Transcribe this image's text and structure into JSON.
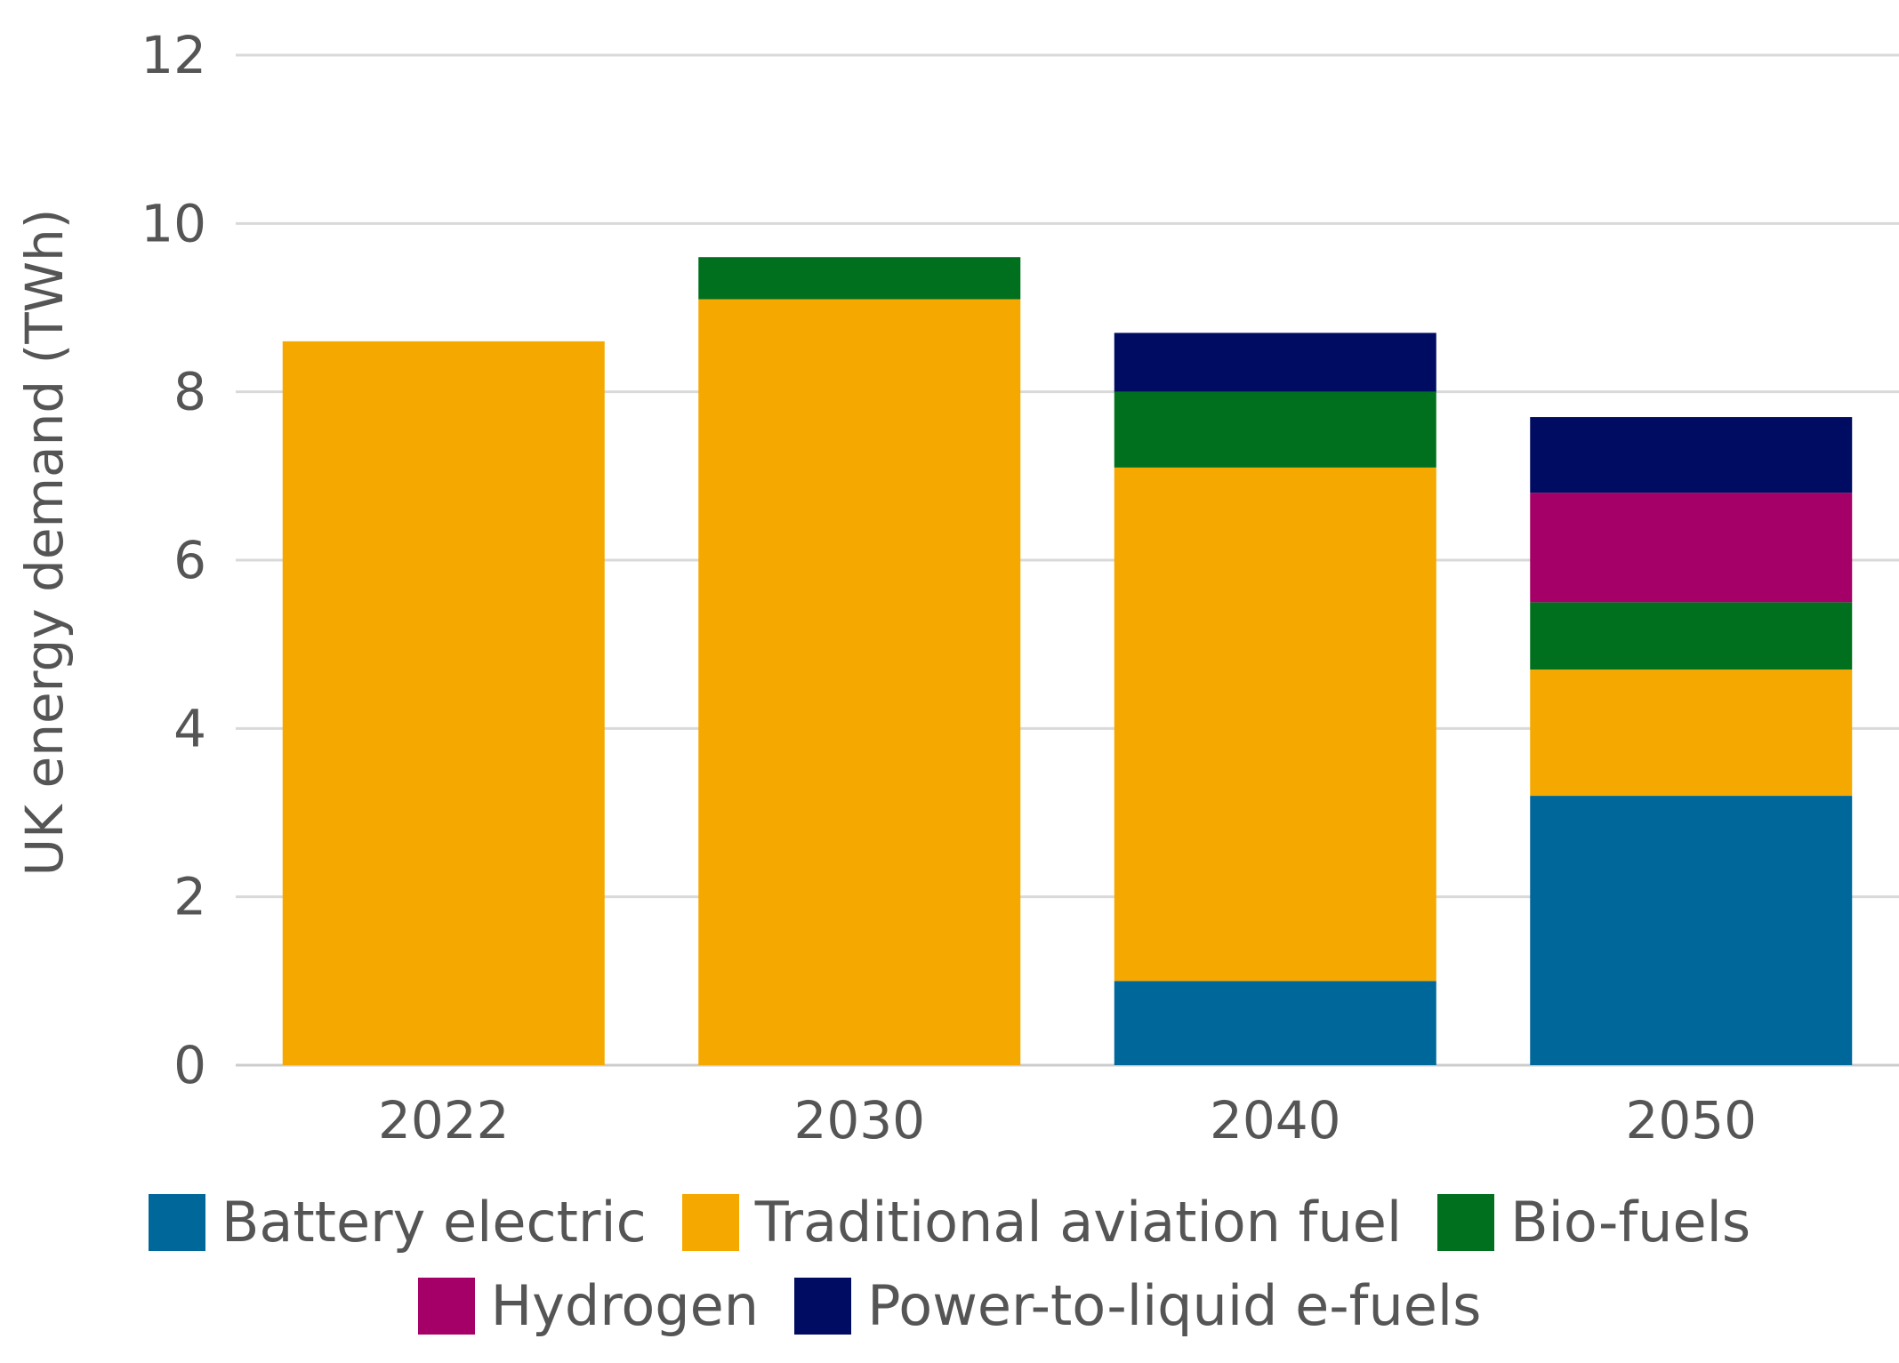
{
  "chart_data": {
    "type": "bar",
    "stacked": true,
    "categories": [
      "2022",
      "2030",
      "2040",
      "2050"
    ],
    "ylabel": "UK energy demand (TWh)",
    "xlabel": "",
    "ylim": [
      0,
      12
    ],
    "yticks": [
      0,
      2,
      4,
      6,
      8,
      10,
      12
    ],
    "grid": "horizontal",
    "legend_position": "bottom",
    "series": [
      {
        "name": "Battery electric",
        "color": "#00679A",
        "values": [
          0,
          0,
          1.0,
          3.2
        ]
      },
      {
        "name": "Traditional aviation fuel",
        "color": "#F5A800",
        "values": [
          8.6,
          9.1,
          6.1,
          1.5
        ]
      },
      {
        "name": "Bio-fuels",
        "color": "#00701E",
        "values": [
          0,
          0.5,
          0.9,
          0.8
        ]
      },
      {
        "name": "Hydrogen",
        "color": "#A50067",
        "values": [
          0,
          0,
          0,
          1.3
        ]
      },
      {
        "name": "Power-to-liquid e-fuels",
        "color": "#000B62",
        "values": [
          0,
          0,
          0.7,
          0.9
        ]
      }
    ],
    "legend_rows": [
      [
        0,
        1,
        2
      ],
      [
        3,
        4
      ]
    ]
  }
}
